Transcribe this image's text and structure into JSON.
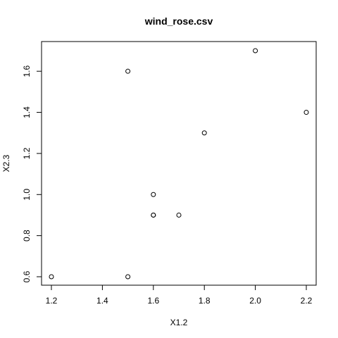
{
  "chart_data": {
    "type": "scatter",
    "title": "wind_rose.csv",
    "xlabel": "X1.2",
    "ylabel": "X2.3",
    "xlim": [
      1.2,
      2.2
    ],
    "ylim": [
      0.6,
      1.7
    ],
    "xticks": [
      "1.2",
      "1.4",
      "1.6",
      "1.8",
      "2.0",
      "2.2"
    ],
    "yticks": [
      "0.6",
      "0.8",
      "1.0",
      "1.2",
      "1.4",
      "1.6"
    ],
    "grid": false,
    "marker": "open-circle",
    "colors": {
      "marker": "#000000",
      "axes": "#000000",
      "background": "#ffffff"
    },
    "points": [
      {
        "x": 1.2,
        "y": 0.6
      },
      {
        "x": 1.5,
        "y": 0.6
      },
      {
        "x": 1.5,
        "y": 1.6
      },
      {
        "x": 1.6,
        "y": 1.0
      },
      {
        "x": 1.6,
        "y": 0.9
      },
      {
        "x": 1.6,
        "y": 0.9
      },
      {
        "x": 1.7,
        "y": 0.9
      },
      {
        "x": 1.8,
        "y": 1.3
      },
      {
        "x": 2.0,
        "y": 1.7
      },
      {
        "x": 2.2,
        "y": 1.4
      }
    ]
  }
}
